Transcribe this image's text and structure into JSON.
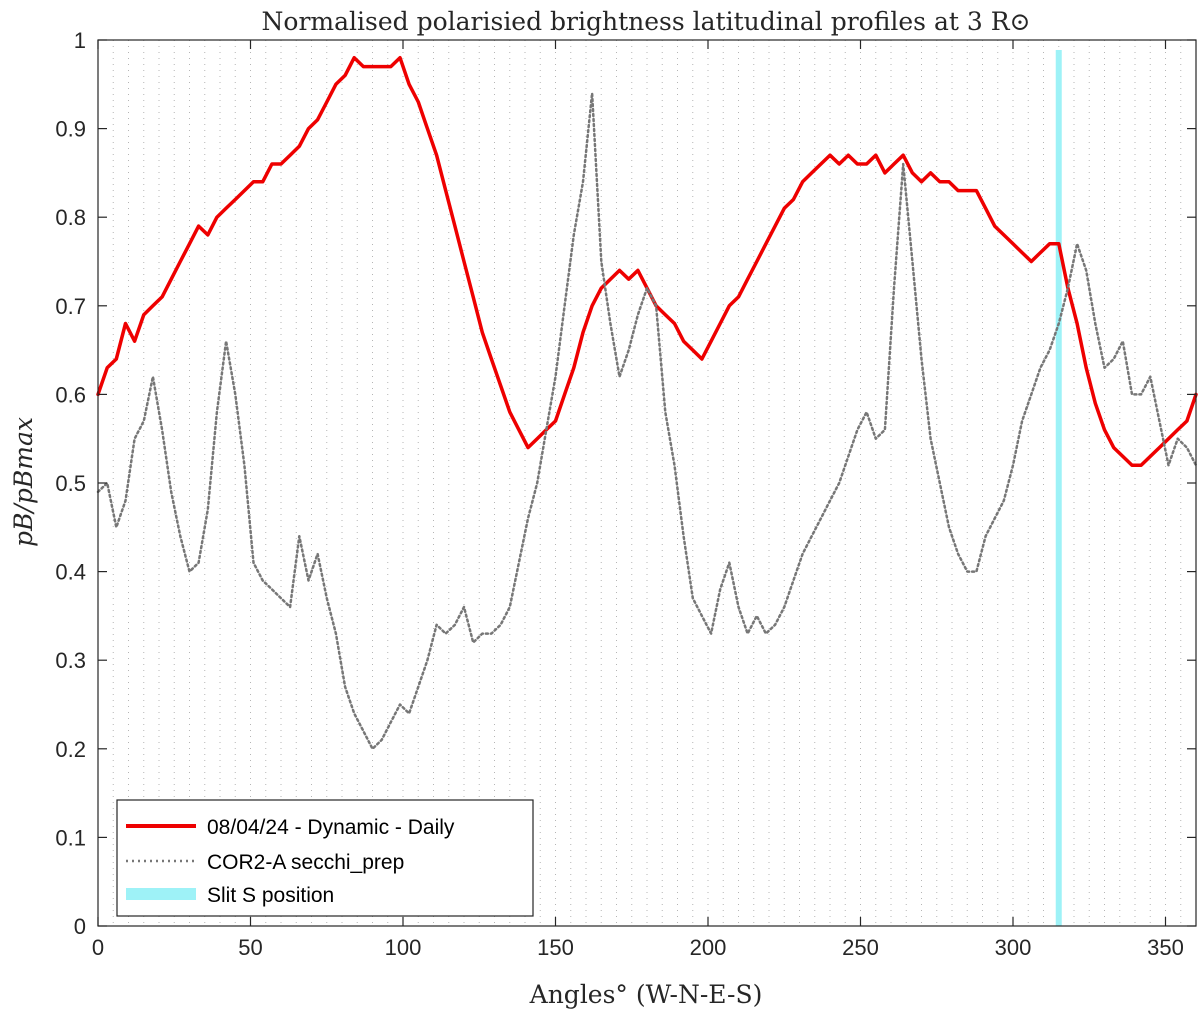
{
  "chart_data": {
    "type": "line",
    "title": "Normalised polarisied brightness latitudinal profiles at 3 R⊙",
    "xlabel": "Angles° (W-N-E-S)",
    "ylabel": "pB/pBmax",
    "xlim": [
      0,
      360
    ],
    "ylim": [
      0,
      1
    ],
    "x_ticks": [
      0,
      50,
      100,
      150,
      200,
      250,
      300,
      350
    ],
    "y_ticks": [
      0,
      0.1,
      0.2,
      0.3,
      0.4,
      0.5,
      0.6,
      0.7,
      0.8,
      0.9,
      1
    ],
    "x_tick_labels": [
      "0",
      "50",
      "100",
      "150",
      "200",
      "250",
      "300",
      "350"
    ],
    "y_tick_labels": [
      "0",
      "0.1",
      "0.2",
      "0.3",
      "0.4",
      "0.5",
      "0.6",
      "0.7",
      "0.8",
      "0.9",
      "1"
    ],
    "grid": "vertical dotted lines every 5 degrees",
    "legend_position": "bottom-left",
    "series": [
      {
        "name": "08/04/24 - Dynamic - Daily",
        "style": "solid",
        "color": "#ee0000",
        "x": [
          0,
          3,
          6,
          9,
          12,
          15,
          18,
          21,
          24,
          27,
          30,
          33,
          36,
          39,
          42,
          45,
          48,
          51,
          54,
          57,
          60,
          63,
          66,
          69,
          72,
          75,
          78,
          81,
          84,
          87,
          90,
          93,
          96,
          99,
          102,
          105,
          108,
          111,
          114,
          117,
          120,
          123,
          126,
          129,
          132,
          135,
          138,
          141,
          144,
          147,
          150,
          153,
          156,
          159,
          162,
          165,
          168,
          171,
          174,
          177,
          180,
          183,
          186,
          189,
          192,
          195,
          198,
          201,
          204,
          207,
          210,
          213,
          216,
          219,
          222,
          225,
          228,
          231,
          234,
          237,
          240,
          243,
          246,
          249,
          252,
          255,
          258,
          261,
          264,
          267,
          270,
          273,
          276,
          279,
          282,
          285,
          288,
          291,
          294,
          297,
          300,
          303,
          306,
          309,
          312,
          315,
          318,
          321,
          324,
          327,
          330,
          333,
          336,
          339,
          342,
          345,
          348,
          351,
          354,
          357,
          360
        ],
        "y": [
          0.6,
          0.63,
          0.64,
          0.68,
          0.66,
          0.69,
          0.7,
          0.71,
          0.73,
          0.75,
          0.77,
          0.79,
          0.78,
          0.8,
          0.81,
          0.82,
          0.83,
          0.84,
          0.84,
          0.86,
          0.86,
          0.87,
          0.88,
          0.9,
          0.91,
          0.93,
          0.95,
          0.96,
          0.98,
          0.97,
          0.97,
          0.97,
          0.97,
          0.98,
          0.95,
          0.93,
          0.9,
          0.87,
          0.83,
          0.79,
          0.75,
          0.71,
          0.67,
          0.64,
          0.61,
          0.58,
          0.56,
          0.54,
          0.55,
          0.56,
          0.57,
          0.6,
          0.63,
          0.67,
          0.7,
          0.72,
          0.73,
          0.74,
          0.73,
          0.74,
          0.72,
          0.7,
          0.69,
          0.68,
          0.66,
          0.65,
          0.64,
          0.66,
          0.68,
          0.7,
          0.71,
          0.73,
          0.75,
          0.77,
          0.79,
          0.81,
          0.82,
          0.84,
          0.85,
          0.86,
          0.87,
          0.86,
          0.87,
          0.86,
          0.86,
          0.87,
          0.85,
          0.86,
          0.87,
          0.85,
          0.84,
          0.85,
          0.84,
          0.84,
          0.83,
          0.83,
          0.83,
          0.81,
          0.79,
          0.78,
          0.77,
          0.76,
          0.75,
          0.76,
          0.77,
          0.77,
          0.72,
          0.68,
          0.63,
          0.59,
          0.56,
          0.54,
          0.53,
          0.52,
          0.52,
          0.53,
          0.54,
          0.55,
          0.56,
          0.57,
          0.6
        ]
      },
      {
        "name": "COR2-A secchi_prep",
        "style": "dotted",
        "color": "#777777",
        "x": [
          0,
          3,
          6,
          9,
          12,
          15,
          18,
          21,
          24,
          27,
          30,
          33,
          36,
          39,
          42,
          45,
          48,
          51,
          54,
          57,
          60,
          63,
          66,
          69,
          72,
          75,
          78,
          81,
          84,
          87,
          90,
          93,
          96,
          99,
          102,
          105,
          108,
          111,
          114,
          117,
          120,
          123,
          126,
          129,
          132,
          135,
          138,
          141,
          144,
          147,
          150,
          153,
          156,
          159,
          162,
          165,
          168,
          171,
          174,
          177,
          180,
          183,
          186,
          189,
          192,
          195,
          198,
          201,
          204,
          207,
          210,
          213,
          216,
          219,
          222,
          225,
          228,
          231,
          234,
          237,
          240,
          243,
          246,
          249,
          252,
          255,
          258,
          261,
          264,
          267,
          270,
          273,
          276,
          279,
          282,
          285,
          288,
          291,
          294,
          297,
          300,
          303,
          306,
          309,
          312,
          315,
          318,
          321,
          324,
          327,
          330,
          333,
          336,
          339,
          342,
          345,
          348,
          351,
          354,
          357,
          360
        ],
        "y": [
          0.49,
          0.5,
          0.45,
          0.48,
          0.55,
          0.57,
          0.62,
          0.56,
          0.49,
          0.44,
          0.4,
          0.41,
          0.47,
          0.58,
          0.66,
          0.6,
          0.52,
          0.41,
          0.39,
          0.38,
          0.37,
          0.36,
          0.44,
          0.39,
          0.42,
          0.37,
          0.33,
          0.27,
          0.24,
          0.22,
          0.2,
          0.21,
          0.23,
          0.25,
          0.24,
          0.27,
          0.3,
          0.34,
          0.33,
          0.34,
          0.36,
          0.32,
          0.33,
          0.33,
          0.34,
          0.36,
          0.41,
          0.46,
          0.5,
          0.56,
          0.62,
          0.7,
          0.78,
          0.84,
          0.94,
          0.75,
          0.68,
          0.62,
          0.65,
          0.69,
          0.72,
          0.7,
          0.58,
          0.52,
          0.44,
          0.37,
          0.35,
          0.33,
          0.38,
          0.41,
          0.36,
          0.33,
          0.35,
          0.33,
          0.34,
          0.36,
          0.39,
          0.42,
          0.44,
          0.46,
          0.48,
          0.5,
          0.53,
          0.56,
          0.58,
          0.55,
          0.56,
          0.72,
          0.86,
          0.75,
          0.64,
          0.55,
          0.5,
          0.45,
          0.42,
          0.4,
          0.4,
          0.44,
          0.46,
          0.48,
          0.52,
          0.57,
          0.6,
          0.63,
          0.65,
          0.68,
          0.72,
          0.77,
          0.74,
          0.68,
          0.63,
          0.64,
          0.66,
          0.6,
          0.6,
          0.62,
          0.57,
          0.52,
          0.55,
          0.54,
          0.52
        ]
      }
    ],
    "slit": {
      "name": "Slit S position",
      "x": 315,
      "color": "#9ef2f7"
    },
    "legend": [
      "08/04/24 - Dynamic - Daily",
      "COR2-A secchi_prep",
      "Slit S position"
    ]
  }
}
